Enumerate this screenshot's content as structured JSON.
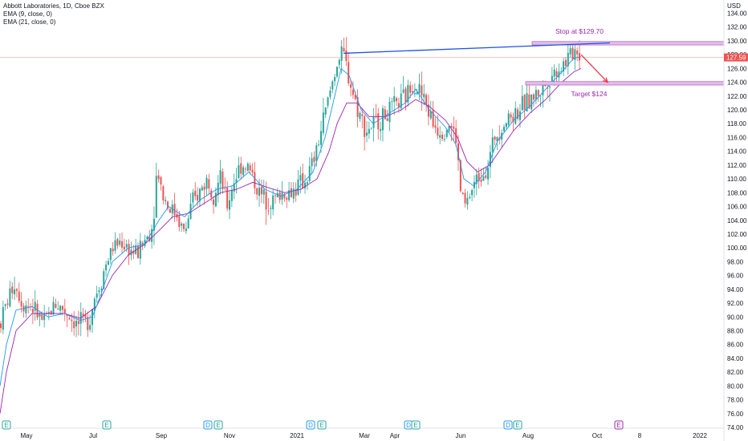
{
  "legend": {
    "title": "Abbott Laboratories, 1D, Cboe BZX",
    "ema9": "EMA (9, close, 0)",
    "ema21": "EMA (21, close, 0)"
  },
  "currency": "USD",
  "last_price": "127.59",
  "colors": {
    "up": "#26a69a",
    "down": "#ef5350",
    "ema9": "#2196f3",
    "ema21": "#9c27b0",
    "trendline": "#1e53e5",
    "zone": "#e1bee7",
    "zone_border": "#ba68c8",
    "arrow": "#f23645",
    "annotation": "#9c27b0"
  },
  "chart_data": {
    "type": "candlestick",
    "y_axis": {
      "min": 73,
      "max": 135,
      "ticks": [
        "134.00",
        "132.00",
        "130.00",
        "128.00",
        "126.00",
        "124.00",
        "122.00",
        "120.00",
        "118.00",
        "116.00",
        "114.00",
        "112.00",
        "110.00",
        "108.00",
        "106.00",
        "104.00",
        "102.00",
        "100.00",
        "98.00",
        "96.00",
        "94.00",
        "92.00",
        "90.00",
        "88.00",
        "86.00",
        "84.00",
        "82.00",
        "80.00",
        "78.00",
        "76.00",
        "74.00"
      ]
    },
    "x_axis": {
      "domain": [
        0,
        932
      ],
      "labels": [
        {
          "text": "May",
          "x": 33
        },
        {
          "text": "Jul",
          "x": 116
        },
        {
          "text": "Sep",
          "x": 201
        },
        {
          "text": "Nov",
          "x": 286
        },
        {
          "text": "2021",
          "x": 370
        },
        {
          "text": "Mar",
          "x": 454
        },
        {
          "text": "Apr",
          "x": 492
        },
        {
          "text": "Jun",
          "x": 574
        },
        {
          "text": "Aug",
          "x": 658
        },
        {
          "text": "Oct",
          "x": 744
        },
        {
          "text": "8",
          "x": 797
        },
        {
          "text": "2022",
          "x": 872
        }
      ]
    },
    "events": [
      {
        "type": "E",
        "x": 8
      },
      {
        "type": "E",
        "x": 133
      },
      {
        "type": "D",
        "x": 259
      },
      {
        "type": "E",
        "x": 272
      },
      {
        "type": "D",
        "x": 387
      },
      {
        "type": "E",
        "x": 401
      },
      {
        "type": "D",
        "x": 509
      },
      {
        "type": "E",
        "x": 518
      },
      {
        "type": "D",
        "x": 633
      },
      {
        "type": "E",
        "x": 645
      },
      {
        "type": "E",
        "x": 771
      }
    ],
    "path": [
      [
        0,
        89
      ],
      [
        8,
        92
      ],
      [
        18,
        95
      ],
      [
        28,
        92
      ],
      [
        40,
        91.5
      ],
      [
        55,
        89
      ],
      [
        68,
        92
      ],
      [
        80,
        91
      ],
      [
        95,
        89
      ],
      [
        105,
        89
      ],
      [
        112,
        90
      ],
      [
        118,
        93
      ],
      [
        125,
        95
      ],
      [
        133,
        98
      ],
      [
        140,
        100
      ],
      [
        150,
        101
      ],
      [
        160,
        100
      ],
      [
        170,
        99
      ],
      [
        180,
        101
      ],
      [
        190,
        103
      ],
      [
        196,
        112
      ],
      [
        202,
        108
      ],
      [
        210,
        106
      ],
      [
        220,
        105
      ],
      [
        230,
        102
      ],
      [
        238,
        106
      ],
      [
        248,
        108
      ],
      [
        258,
        110
      ],
      [
        266,
        108
      ],
      [
        275,
        110
      ],
      [
        283,
        106
      ],
      [
        292,
        110
      ],
      [
        300,
        112
      ],
      [
        308,
        112
      ],
      [
        316,
        110
      ],
      [
        322,
        108
      ],
      [
        332,
        107
      ],
      [
        342,
        107
      ],
      [
        352,
        108
      ],
      [
        362,
        108
      ],
      [
        372,
        109
      ],
      [
        382,
        110
      ],
      [
        392,
        113
      ],
      [
        402,
        118
      ],
      [
        412,
        123
      ],
      [
        420,
        127
      ],
      [
        428,
        128
      ],
      [
        436,
        124
      ],
      [
        446,
        120
      ],
      [
        456,
        117
      ],
      [
        466,
        118
      ],
      [
        478,
        119
      ],
      [
        488,
        120
      ],
      [
        498,
        121
      ],
      [
        506,
        122
      ],
      [
        514,
        124
      ],
      [
        522,
        123
      ],
      [
        530,
        121
      ],
      [
        540,
        118
      ],
      [
        550,
        117
      ],
      [
        560,
        118
      ],
      [
        568,
        116
      ],
      [
        574,
        108
      ],
      [
        580,
        106
      ],
      [
        590,
        109
      ],
      [
        600,
        111
      ],
      [
        608,
        112
      ],
      [
        616,
        116
      ],
      [
        626,
        118
      ],
      [
        636,
        119
      ],
      [
        646,
        120
      ],
      [
        656,
        121
      ],
      [
        666,
        122
      ],
      [
        676,
        123
      ],
      [
        686,
        125
      ],
      [
        696,
        126
      ],
      [
        704,
        127
      ],
      [
        712,
        128
      ],
      [
        718,
        129
      ],
      [
        724,
        127.6
      ]
    ],
    "ema9_path": [
      [
        0,
        80
      ],
      [
        8,
        86
      ],
      [
        20,
        91
      ],
      [
        40,
        91.5
      ],
      [
        60,
        90
      ],
      [
        80,
        90.5
      ],
      [
        100,
        89.5
      ],
      [
        115,
        90
      ],
      [
        125,
        93
      ],
      [
        140,
        98
      ],
      [
        160,
        100
      ],
      [
        180,
        100.5
      ],
      [
        198,
        104
      ],
      [
        210,
        106
      ],
      [
        230,
        104.5
      ],
      [
        250,
        107
      ],
      [
        270,
        108.5
      ],
      [
        290,
        109
      ],
      [
        310,
        111
      ],
      [
        330,
        108.5
      ],
      [
        350,
        107.5
      ],
      [
        370,
        108.5
      ],
      [
        390,
        111
      ],
      [
        405,
        116
      ],
      [
        415,
        121
      ],
      [
        425,
        126
      ],
      [
        435,
        125
      ],
      [
        450,
        120
      ],
      [
        465,
        118
      ],
      [
        485,
        119.5
      ],
      [
        505,
        121
      ],
      [
        518,
        123
      ],
      [
        535,
        120
      ],
      [
        555,
        117.5
      ],
      [
        568,
        115
      ],
      [
        578,
        110
      ],
      [
        590,
        109
      ],
      [
        605,
        111
      ],
      [
        620,
        115.5
      ],
      [
        640,
        118.5
      ],
      [
        660,
        120.5
      ],
      [
        680,
        123
      ],
      [
        700,
        125.5
      ],
      [
        715,
        127.5
      ],
      [
        724,
        127.7
      ]
    ],
    "ema21_path": [
      [
        0,
        76
      ],
      [
        8,
        82
      ],
      [
        20,
        88
      ],
      [
        40,
        90.5
      ],
      [
        60,
        90.5
      ],
      [
        80,
        90.5
      ],
      [
        100,
        89.8
      ],
      [
        120,
        91.5
      ],
      [
        140,
        96
      ],
      [
        160,
        99
      ],
      [
        180,
        100.5
      ],
      [
        198,
        102.5
      ],
      [
        215,
        104.5
      ],
      [
        235,
        105
      ],
      [
        255,
        106.5
      ],
      [
        275,
        108
      ],
      [
        295,
        108.5
      ],
      [
        315,
        109.5
      ],
      [
        335,
        108.7
      ],
      [
        355,
        108
      ],
      [
        375,
        108.5
      ],
      [
        395,
        110
      ],
      [
        410,
        114
      ],
      [
        420,
        118
      ],
      [
        432,
        121
      ],
      [
        445,
        121
      ],
      [
        460,
        119
      ],
      [
        480,
        119
      ],
      [
        500,
        120
      ],
      [
        518,
        121.5
      ],
      [
        535,
        120.5
      ],
      [
        555,
        118.5
      ],
      [
        570,
        116
      ],
      [
        582,
        112.5
      ],
      [
        595,
        111
      ],
      [
        610,
        112
      ],
      [
        625,
        114.5
      ],
      [
        640,
        117
      ],
      [
        660,
        119.5
      ],
      [
        680,
        121.5
      ],
      [
        700,
        124
      ],
      [
        715,
        125.5
      ],
      [
        724,
        126
      ]
    ],
    "trendline": {
      "from": [
        428,
        128.2
      ],
      "to": [
        760,
        129.7
      ]
    },
    "zones": [
      {
        "label": "Stop at $129.70",
        "x_from": 663,
        "x_to": 924,
        "y_low": 129.4,
        "y_high": 129.9
      },
      {
        "label": "Target $124",
        "x_from": 655,
        "x_to": 924,
        "y_low": 123.6,
        "y_high": 124.1
      }
    ],
    "arrow": {
      "from": [
        724,
        128
      ],
      "to": [
        757,
        124
      ]
    },
    "last_price": 127.59
  }
}
